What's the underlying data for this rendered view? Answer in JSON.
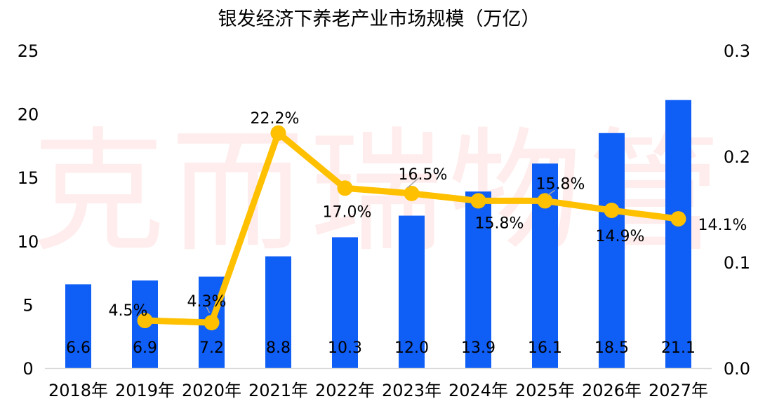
{
  "chart_data": {
    "type": "bar",
    "title": "银发经济下养老产业市场规模（万亿）",
    "categories": [
      "2018年",
      "2019年",
      "2020年",
      "2021年",
      "2022年",
      "2023年",
      "2024年",
      "2025年",
      "2026年",
      "2027年"
    ],
    "series": [
      {
        "type": "bar",
        "axis": "left",
        "values": [
          6.6,
          6.9,
          7.2,
          8.8,
          10.3,
          12.0,
          13.9,
          16.1,
          18.5,
          21.1
        ],
        "labels": [
          "6.6",
          "6.9",
          "7.2",
          "8.8",
          "10.3",
          "12.0",
          "13.9",
          "16.1",
          "18.5",
          "21.1"
        ],
        "color": "#0f5ef6"
      },
      {
        "type": "line",
        "axis": "right",
        "values": [
          null,
          0.045,
          0.043,
          0.222,
          0.17,
          0.165,
          0.158,
          0.158,
          0.149,
          0.141
        ],
        "labels": [
          "",
          "4.5%",
          "4.3%",
          "22.2%",
          "17.0%",
          "16.5%",
          "15.8%",
          "15.8%",
          "14.9%",
          "14.1%"
        ],
        "color": "#ffc000"
      }
    ],
    "y_left": {
      "min": 0,
      "max": 25,
      "ticks": [
        "0",
        "5",
        "10",
        "15",
        "20",
        "25"
      ]
    },
    "y_right": {
      "min": 0,
      "max": 0.3,
      "ticks": [
        "0.0",
        "0.1",
        "0.2",
        "0.3"
      ]
    },
    "grid": false,
    "legend": "none"
  },
  "watermark": "克而瑞物管",
  "colors": {
    "bar": "#0f5ef6",
    "line": "#ffc000",
    "axis": "#d9d9d9",
    "leader": "#a6a6a6"
  }
}
